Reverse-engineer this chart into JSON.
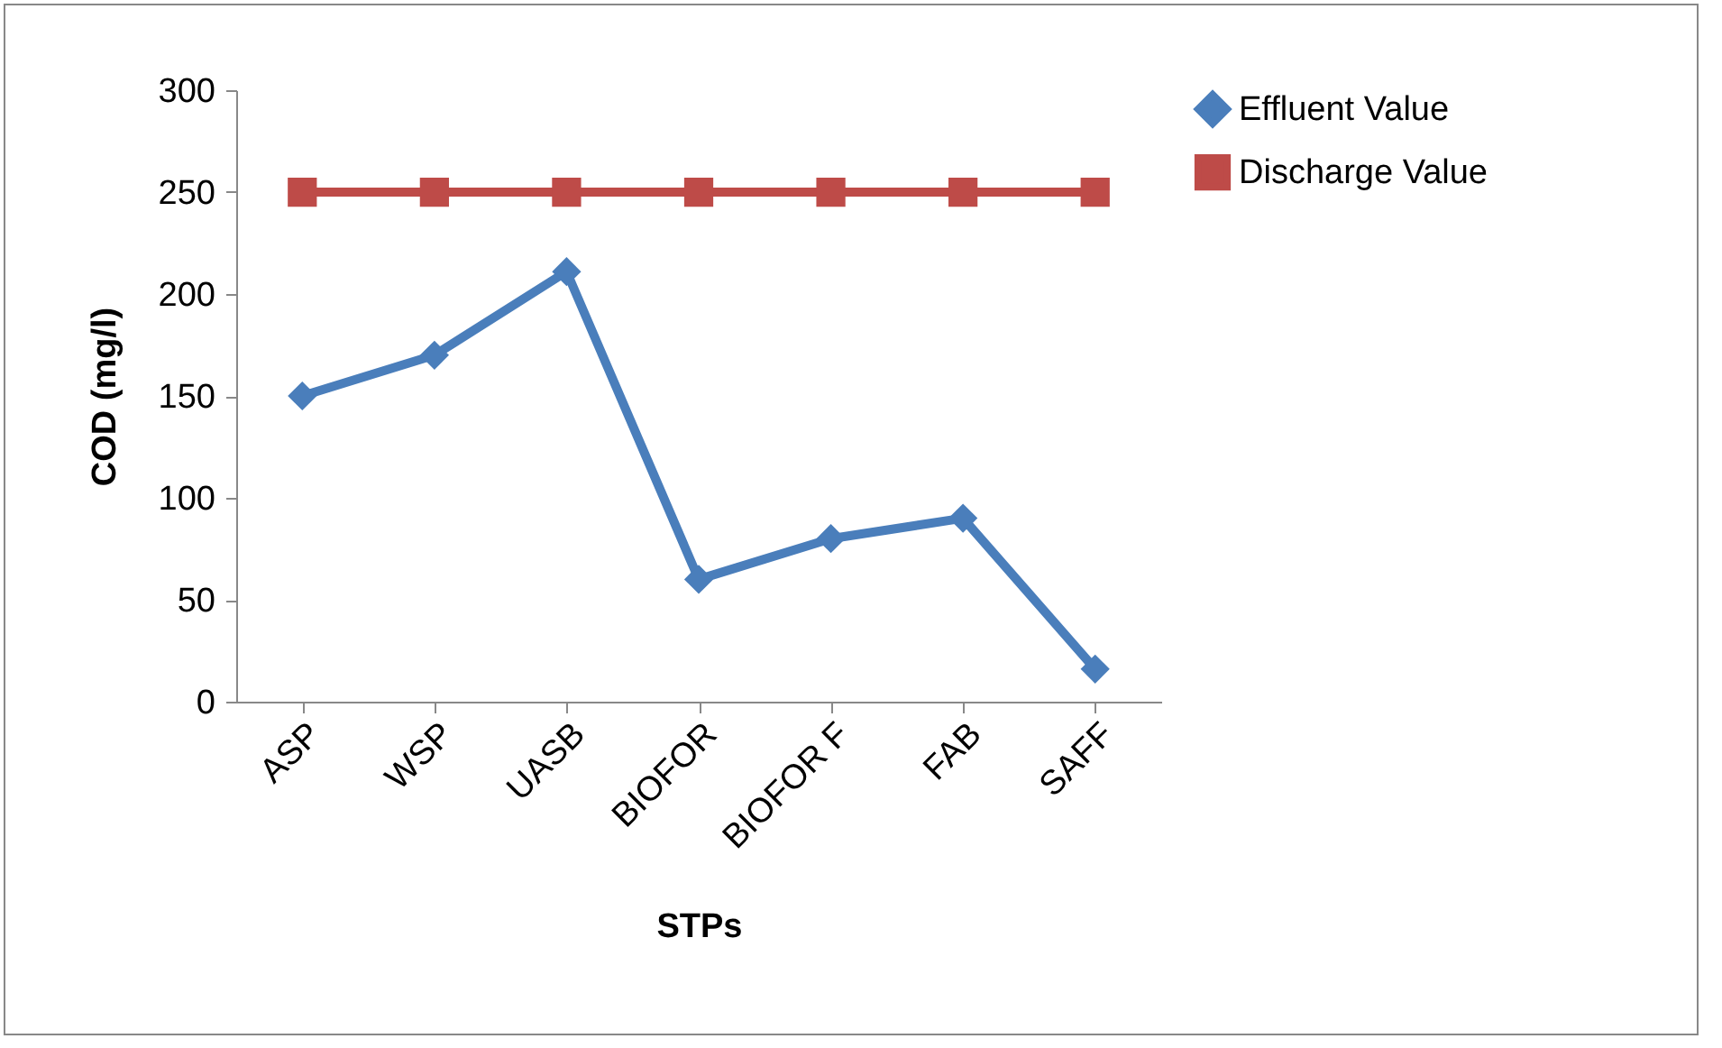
{
  "chart_data": {
    "type": "line",
    "xlabel": "STPs",
    "ylabel": "COD (mg/l)",
    "categories": [
      "ASP",
      "WSP",
      "UASB",
      "BIOFOR",
      "BIOFOR F",
      "FAB",
      "SAFF"
    ],
    "series": [
      {
        "name": "Effluent Value",
        "color": "#4a7ebb",
        "marker": "diamond",
        "values": [
          150,
          170,
          211,
          60,
          80,
          90,
          16
        ]
      },
      {
        "name": "Discharge Value",
        "color": "#be4b48",
        "marker": "square",
        "values": [
          250,
          250,
          250,
          250,
          250,
          250,
          250
        ]
      }
    ],
    "ylim": [
      0,
      300
    ],
    "yticks": [
      0,
      50,
      100,
      150,
      200,
      250,
      300
    ],
    "grid": false,
    "legend": "right",
    "line_style": "solid"
  }
}
